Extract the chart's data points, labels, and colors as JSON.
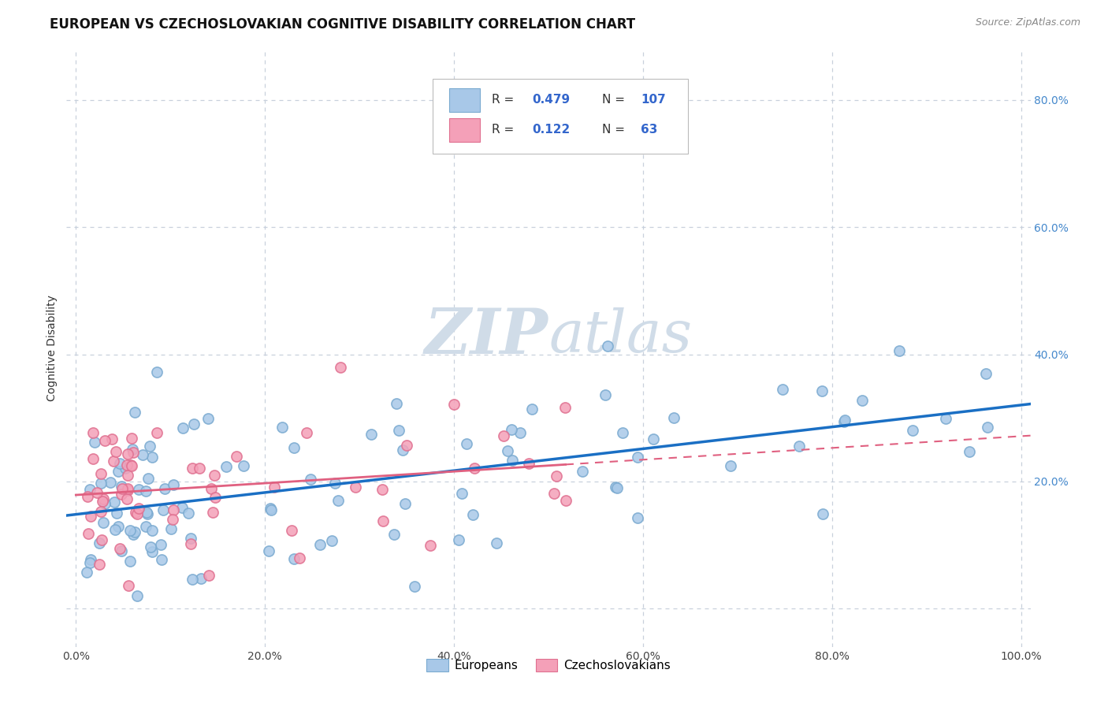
{
  "title": "EUROPEAN VS CZECHOSLOVAKIAN COGNITIVE DISABILITY CORRELATION CHART",
  "source": "Source: ZipAtlas.com",
  "ylabel": "Cognitive Disability",
  "x_ticks": [
    0.0,
    0.2,
    0.4,
    0.6,
    0.8,
    1.0
  ],
  "x_tick_labels": [
    "0.0%",
    "",
    "40.0%",
    "",
    "80.0%",
    "100.0%"
  ],
  "x_tick_labels_full": [
    "0.0%",
    "20.0%",
    "40.0%",
    "60.0%",
    "80.0%",
    "100.0%"
  ],
  "y_ticks_right": [
    0.0,
    0.2,
    0.4,
    0.6,
    0.8
  ],
  "y_tick_labels_right": [
    "",
    "20.0%",
    "40.0%",
    "60.0%",
    "80.0%"
  ],
  "xlim": [
    -0.01,
    1.01
  ],
  "ylim": [
    -0.06,
    0.88
  ],
  "blue_line_color": "#1a6fc4",
  "pink_line_color": "#e06080",
  "dot_blue_face": "#a8c8e8",
  "dot_blue_edge": "#7aaad0",
  "dot_pink_face": "#f4a0b8",
  "dot_pink_edge": "#e07090",
  "background_color": "#ffffff",
  "grid_color": "#c8d0dc",
  "watermark_color": "#d0dce8",
  "right_tick_color": "#4488cc",
  "title_fontsize": 12,
  "source_fontsize": 9,
  "axis_fontsize": 10,
  "tick_fontsize": 10,
  "legend_box_color": "#ffffff",
  "legend_border_color": "#cccccc",
  "legend_text_color": "#333333",
  "legend_value_color": "#3366cc",
  "eu_R": 0.479,
  "eu_N": 107,
  "cz_R": 0.122,
  "cz_N": 63,
  "watermark_text": "ZIPatlas",
  "watermark_fontsize": 58
}
